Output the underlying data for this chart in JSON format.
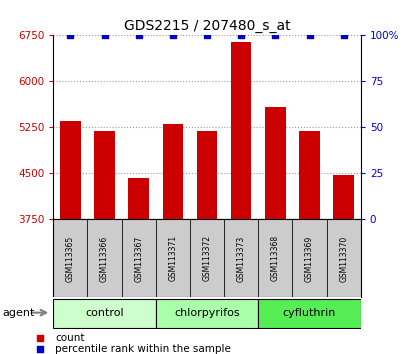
{
  "title": "GDS2215 / 207480_s_at",
  "samples": [
    "GSM113365",
    "GSM113366",
    "GSM113367",
    "GSM113371",
    "GSM113372",
    "GSM113373",
    "GSM113368",
    "GSM113369",
    "GSM113370"
  ],
  "bar_values": [
    5350,
    5200,
    4420,
    5300,
    5200,
    6650,
    5580,
    5200,
    4480
  ],
  "percentile_values": [
    100,
    100,
    100,
    100,
    100,
    100,
    100,
    100,
    100
  ],
  "bar_color": "#cc0000",
  "percentile_color": "#0000cc",
  "ylim_left": [
    3750,
    6750
  ],
  "ylim_right": [
    0,
    100
  ],
  "yticks_left": [
    3750,
    4500,
    5250,
    6000,
    6750
  ],
  "yticks_right": [
    0,
    25,
    50,
    75,
    100
  ],
  "groups": [
    {
      "label": "control",
      "start": 0,
      "end": 3,
      "color": "#ccffcc"
    },
    {
      "label": "chlorpyrifos",
      "start": 3,
      "end": 6,
      "color": "#aaffaa"
    },
    {
      "label": "cyfluthrin",
      "start": 6,
      "end": 9,
      "color": "#55ee55"
    }
  ],
  "agent_label": "agent",
  "legend_count_label": "count",
  "legend_percentile_label": "percentile rank within the sample",
  "background_color": "#ffffff",
  "plot_bg_color": "#ffffff",
  "grid_color": "#888888",
  "label_area_color": "#cccccc",
  "n_samples": 9
}
